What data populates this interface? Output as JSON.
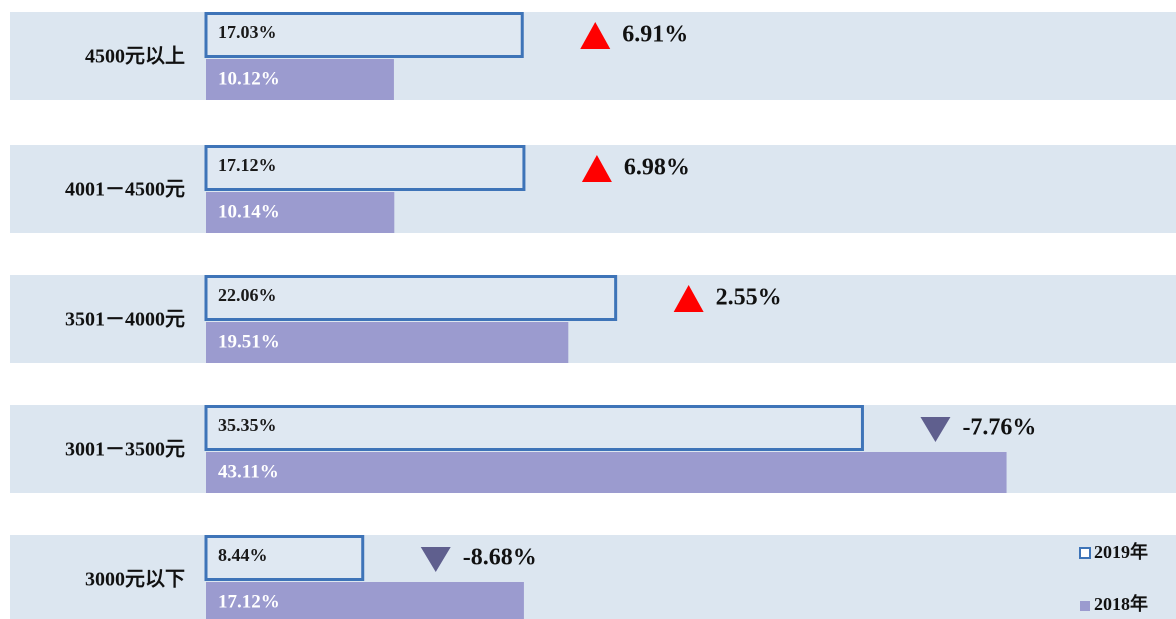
{
  "chart_data": {
    "type": "bar",
    "orientation": "horizontal",
    "categories": [
      "4500元以上",
      "4001－4500元",
      "3501－4000元",
      "3001－3500元",
      "3000元以下"
    ],
    "series": [
      {
        "name": "2019年",
        "color": "#3e74b8",
        "values": [
          17.03,
          17.12,
          22.06,
          35.35,
          8.44
        ],
        "value_labels": [
          "17.03%",
          "17.12%",
          "22.06%",
          "35.35%",
          "8.44%"
        ]
      },
      {
        "name": "2018年",
        "color": "#9b9bcf",
        "values": [
          10.12,
          10.14,
          19.51,
          43.11,
          17.12
        ],
        "value_labels": [
          "10.12%",
          "10.14%",
          "19.51%",
          "43.11%",
          "17.12%"
        ]
      }
    ],
    "changes": [
      6.91,
      6.98,
      2.55,
      -7.76,
      -8.68
    ],
    "change_labels": [
      "6.91%",
      "6.98%",
      "2.55%",
      "-7.76%",
      "-8.68%"
    ],
    "up_color": "#ff0000",
    "down_color": "#5f5f8e",
    "legend": "bottom-right"
  }
}
